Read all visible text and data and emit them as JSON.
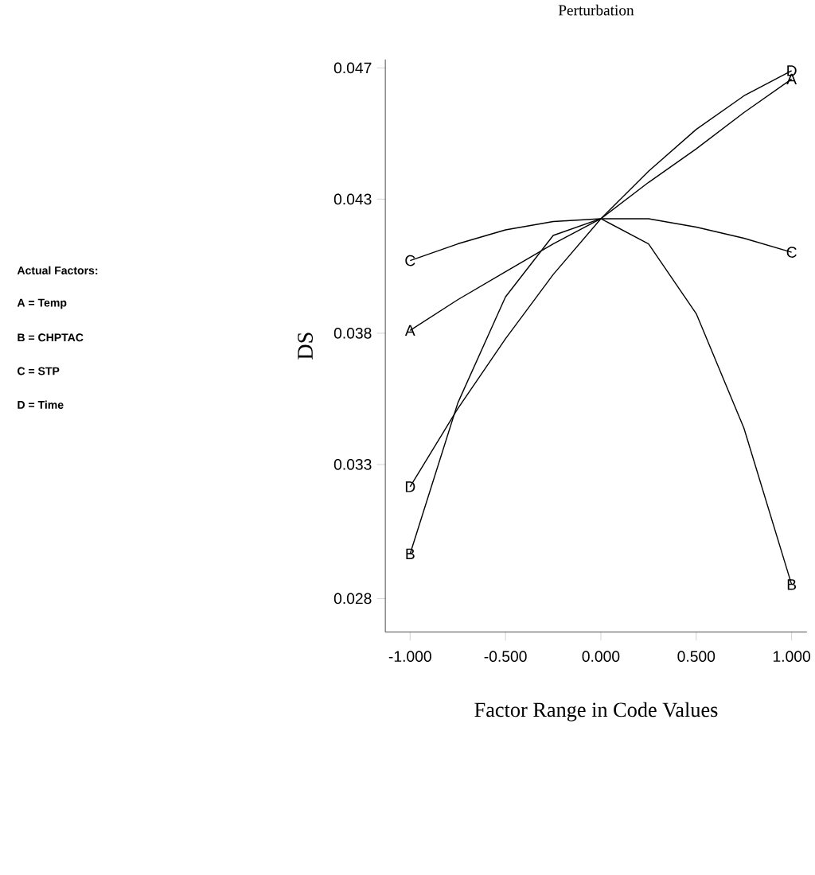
{
  "chart_data": {
    "type": "line",
    "title": "Perturbation",
    "xlabel": "Factor Range in Code Values",
    "ylabel": "DS",
    "x": [
      -1,
      -0.75,
      -0.5,
      -0.25,
      0,
      0.25,
      0.5,
      0.75,
      1
    ],
    "series": [
      {
        "name": "A",
        "color": "#000000",
        "values": [
          0.0381,
          0.0392,
          0.0402,
          0.0412,
          0.0421,
          0.0434,
          0.0446,
          0.0459,
          0.0471
        ]
      },
      {
        "name": "B",
        "color": "#000000",
        "values": [
          0.0301,
          0.0355,
          0.0393,
          0.0415,
          0.0421,
          0.0412,
          0.0387,
          0.0346,
          0.029
        ]
      },
      {
        "name": "C",
        "color": "#000000",
        "values": [
          0.0406,
          0.0412,
          0.0417,
          0.042,
          0.0421,
          0.0421,
          0.0418,
          0.0414,
          0.0409
        ]
      },
      {
        "name": "D",
        "color": "#000000",
        "values": [
          0.0325,
          0.0353,
          0.0378,
          0.0401,
          0.0421,
          0.0438,
          0.0453,
          0.0465,
          0.0474
        ]
      }
    ],
    "xlim": [
      -1.13,
      1.08
    ],
    "ylim": [
      0.0273,
      0.0478
    ],
    "xticks": [
      {
        "value": -1,
        "label": "-1.000"
      },
      {
        "value": -0.5,
        "label": "-0.500"
      },
      {
        "value": 0,
        "label": "0.000"
      },
      {
        "value": 0.5,
        "label": "0.500"
      },
      {
        "value": 1,
        "label": "1.000"
      }
    ],
    "yticks": [
      {
        "value": 0.0285,
        "label": "0.028"
      },
      {
        "value": 0.0333,
        "label": "0.033"
      },
      {
        "value": 0.038,
        "label": "0.038"
      },
      {
        "value": 0.0428,
        "label": "0.043"
      },
      {
        "value": 0.0475,
        "label": "0.047"
      }
    ],
    "grid": false,
    "line_style": "solid",
    "annotations": [
      "Actual Factors:",
      "A = Temp",
      "B = CHPTAC",
      "C = STP",
      "D = Time"
    ]
  }
}
